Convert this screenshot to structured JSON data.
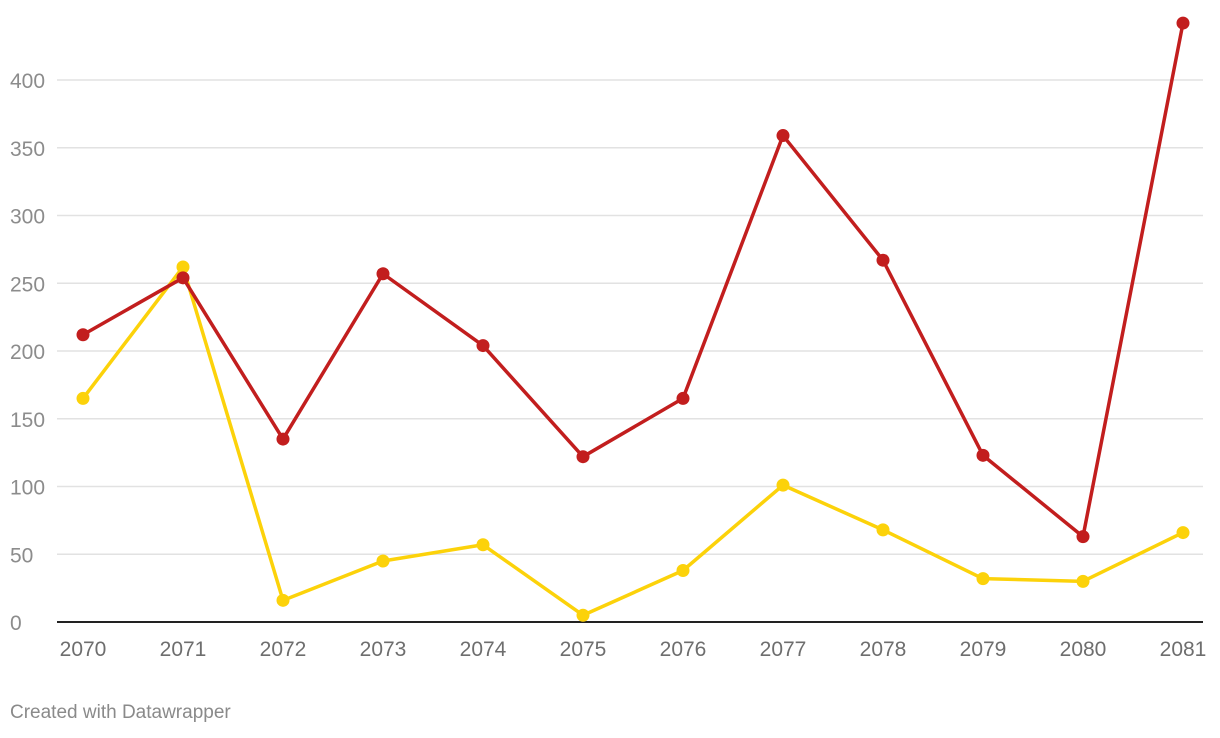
{
  "chart_data": {
    "type": "line",
    "x": [
      "2070",
      "2071",
      "2072",
      "2073",
      "2074",
      "2075",
      "2076",
      "2077",
      "2078",
      "2079",
      "2080",
      "2081"
    ],
    "ylim": [
      0,
      440
    ],
    "yticks": [
      0,
      50,
      100,
      150,
      200,
      250,
      300,
      350,
      400
    ],
    "grid": true,
    "series": [
      {
        "color": "#fcd20a",
        "values": [
          165,
          262,
          16,
          45,
          57,
          5,
          38,
          101,
          68,
          32,
          30,
          66
        ]
      },
      {
        "color": "#c21e1e",
        "values": [
          212,
          254,
          135,
          257,
          204,
          122,
          165,
          359,
          267,
          123,
          63,
          442
        ]
      }
    ]
  },
  "footer": {
    "credit": "Created with Datawrapper"
  }
}
